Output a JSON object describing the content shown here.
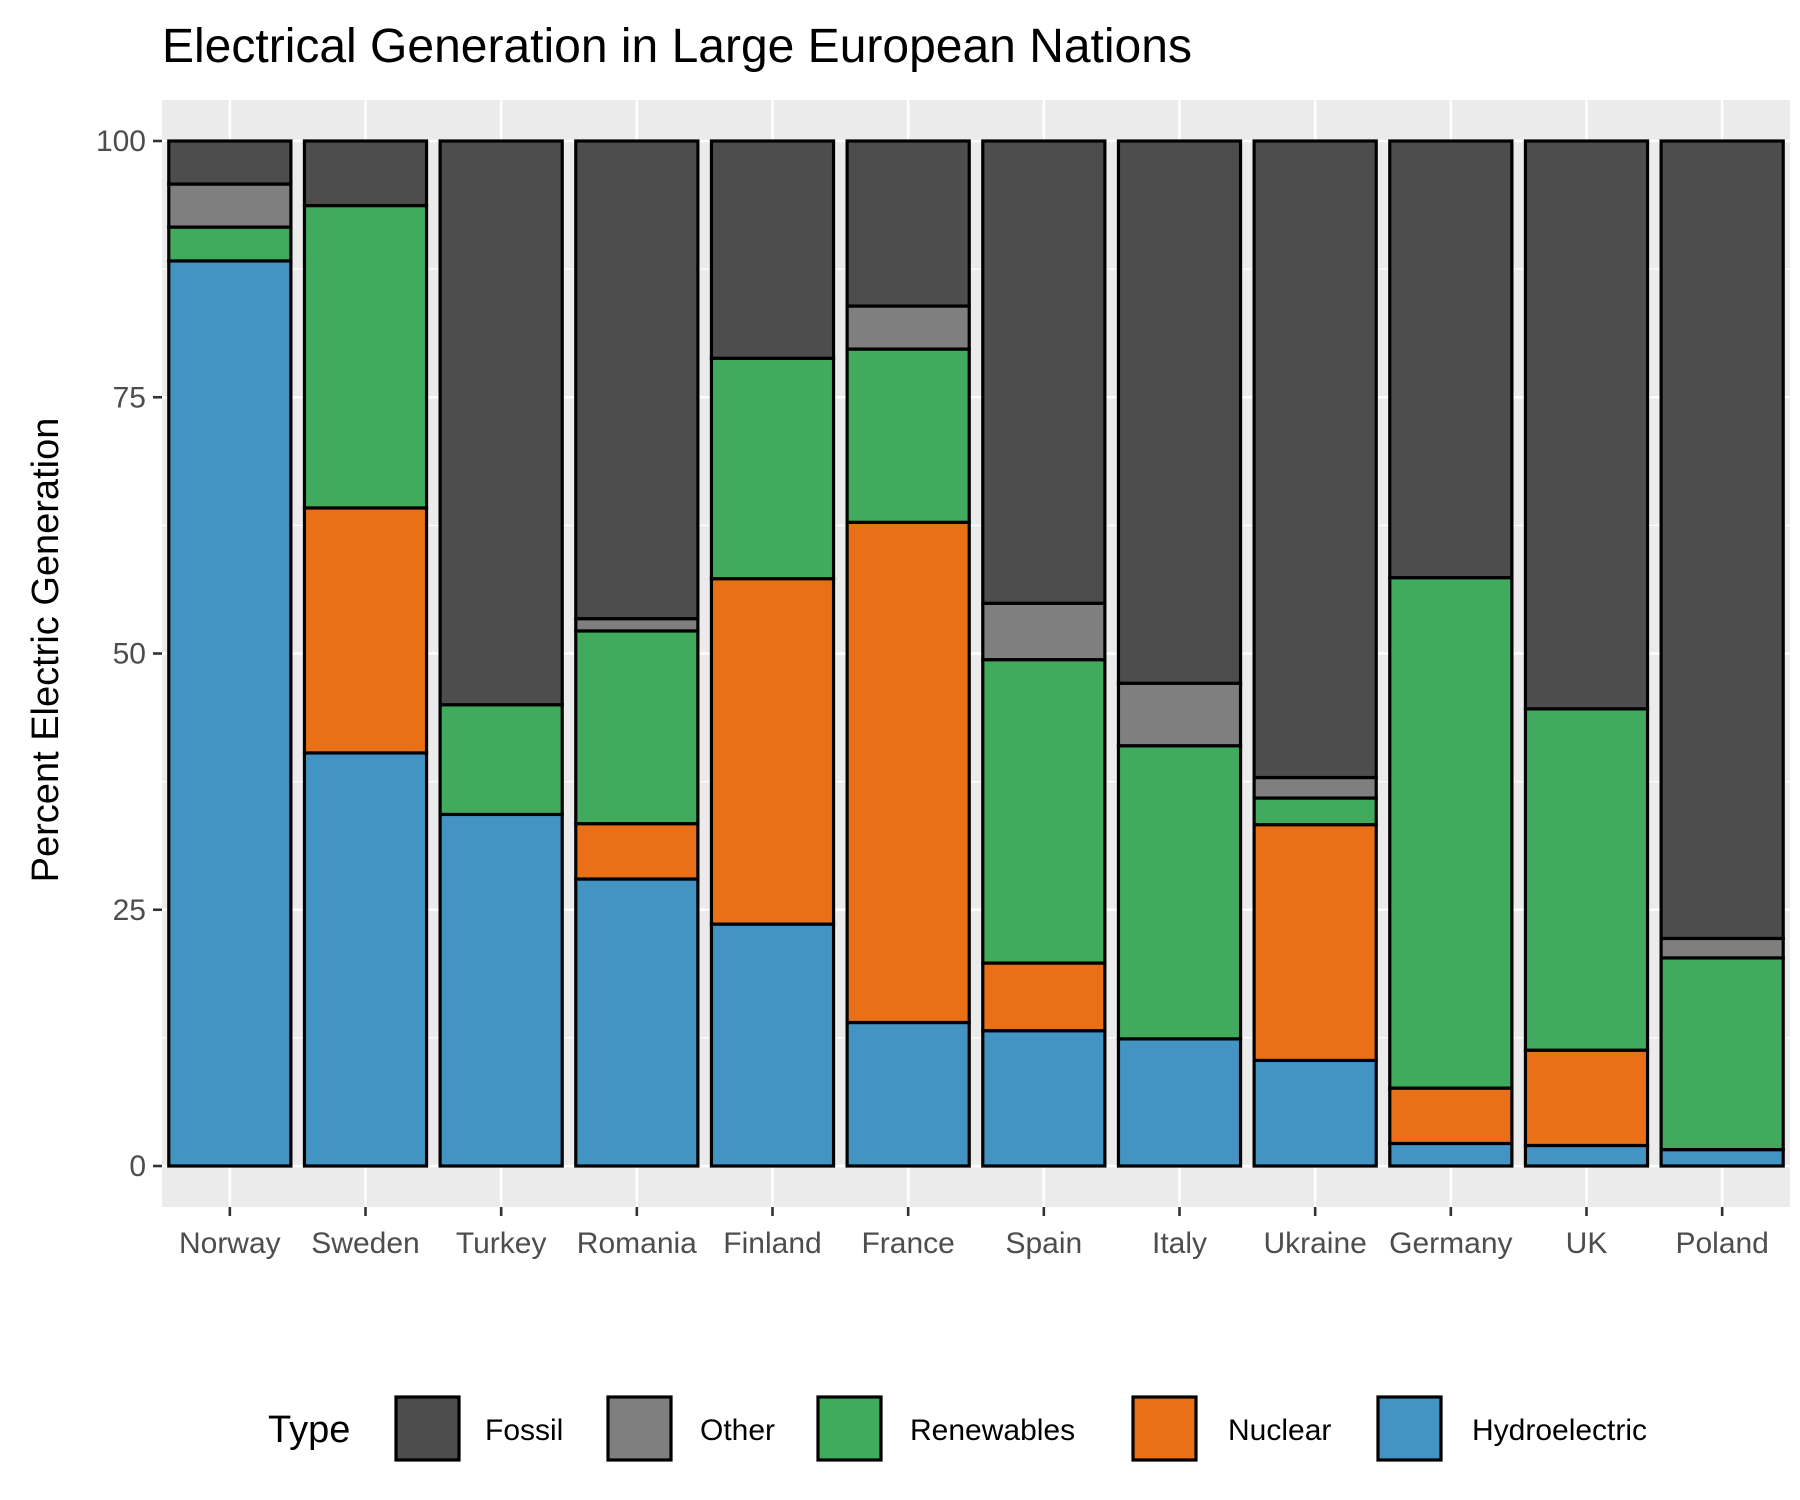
{
  "chart_data": {
    "type": "bar",
    "stacked": true,
    "title": "Electrical Generation in Large European Nations",
    "xlabel": "",
    "ylabel": "Percent Electric Generation",
    "ylim": [
      -4,
      104
    ],
    "yticks": [
      0,
      25,
      50,
      75,
      100
    ],
    "grid": true,
    "legend_position": "bottom",
    "legend_title": "Type",
    "categories": [
      "Norway",
      "Sweden",
      "Turkey",
      "Romania",
      "Finland",
      "France",
      "Spain",
      "Italy",
      "Ukraine",
      "Germany",
      "UK",
      "Poland"
    ],
    "series": [
      {
        "name": "Hydroelectric",
        "color": "#4393c3",
        "values": [
          88.3,
          40.3,
          34.3,
          28.0,
          23.6,
          14.0,
          13.2,
          12.4,
          10.3,
          2.2,
          2.0,
          1.6
        ]
      },
      {
        "name": "Nuclear",
        "color": "#ea7017",
        "values": [
          0,
          23.9,
          0,
          5.4,
          33.7,
          48.8,
          6.6,
          0,
          23.0,
          5.4,
          9.3,
          0
        ]
      },
      {
        "name": "Renewables",
        "color": "#41ab5d",
        "values": [
          3.3,
          29.5,
          10.7,
          18.8,
          21.5,
          16.9,
          29.6,
          28.6,
          2.6,
          49.8,
          33.3,
          18.7
        ]
      },
      {
        "name": "Other",
        "color": "#7f7f7f",
        "values": [
          4.2,
          0,
          0,
          1.2,
          0,
          4.2,
          5.5,
          6.1,
          2.0,
          0,
          0,
          1.9
        ]
      },
      {
        "name": "Fossil",
        "color": "#4d4d4d",
        "values": [
          4.2,
          6.3,
          55.0,
          46.6,
          21.2,
          16.1,
          45.1,
          52.9,
          62.1,
          42.6,
          55.4,
          77.8
        ]
      }
    ],
    "legend_order": [
      "Fossil",
      "Other",
      "Renewables",
      "Nuclear",
      "Hydroelectric"
    ]
  }
}
